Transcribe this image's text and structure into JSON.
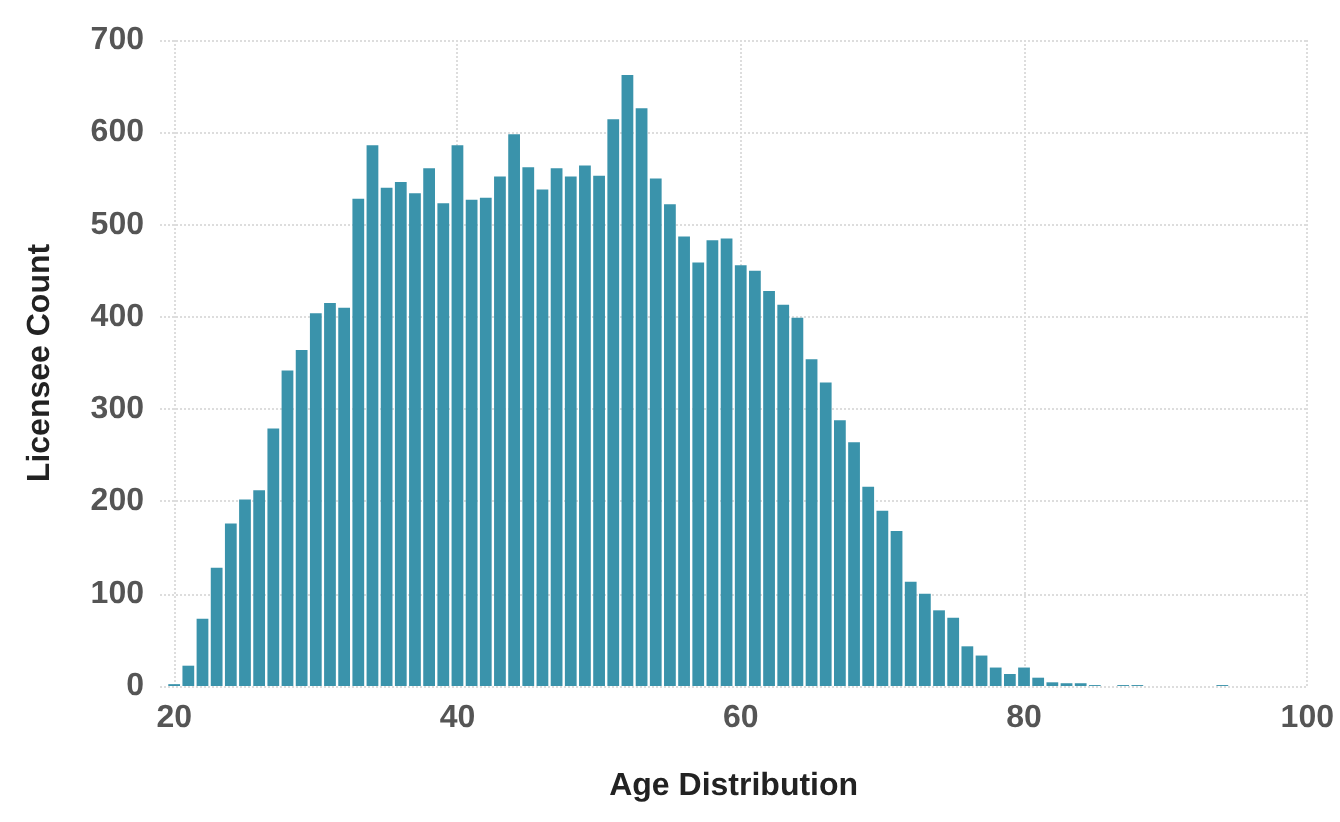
{
  "chart_data": {
    "type": "histogram",
    "xlabel": "Age Distribution",
    "ylabel": "Licensee Count",
    "bins": [
      19.5,
      20.5,
      21.5,
      22.5,
      23.5,
      24.5,
      25.5,
      26.5,
      27.5,
      28.5,
      29.5,
      30.5,
      31.5,
      32.5,
      33.5,
      34.5,
      35.5,
      36.5,
      37.5,
      38.5,
      39.5,
      40.5,
      41.5,
      42.5,
      43.5,
      44.5,
      45.5,
      46.5,
      47.5,
      48.5,
      49.5,
      50.5,
      51.5,
      52.5,
      53.5,
      54.5,
      55.5,
      56.5,
      57.5,
      58.5,
      59.5,
      60.5,
      61.5,
      62.5,
      63.5,
      64.5,
      65.5,
      66.5,
      67.5,
      68.5,
      69.5,
      70.5,
      71.5,
      72.5,
      73.5,
      74.5,
      75.5,
      76.5,
      77.5,
      78.5,
      79.5,
      80.5,
      81.5,
      82.5,
      83.5,
      84.5,
      85.5,
      86.5,
      87.5,
      88.5,
      89.5,
      90.5,
      91.5,
      92.5,
      93.5,
      94.5
    ],
    "values": [
      2,
      22,
      73,
      128,
      176,
      202,
      212,
      279,
      342,
      364,
      404,
      415,
      410,
      528,
      586,
      540,
      546,
      534,
      561,
      523,
      586,
      527,
      529,
      552,
      598,
      562,
      538,
      561,
      552,
      564,
      553,
      614,
      662,
      626,
      550,
      522,
      487,
      459,
      483,
      485,
      456,
      450,
      428,
      413,
      399,
      354,
      329,
      288,
      264,
      216,
      190,
      168,
      113,
      100,
      82,
      74,
      43,
      33,
      20,
      13,
      20,
      9,
      4,
      3,
      3,
      1,
      0,
      1,
      1,
      0,
      0,
      0,
      0,
      0,
      1
    ],
    "color": "#3a93ab",
    "xlim": [
      19,
      100
    ],
    "xticks": [
      20,
      40,
      60,
      80,
      100
    ],
    "ylim": [
      0,
      700
    ],
    "yticks": [
      0,
      100,
      200,
      300,
      400,
      500,
      600,
      700
    ],
    "grid": true
  }
}
